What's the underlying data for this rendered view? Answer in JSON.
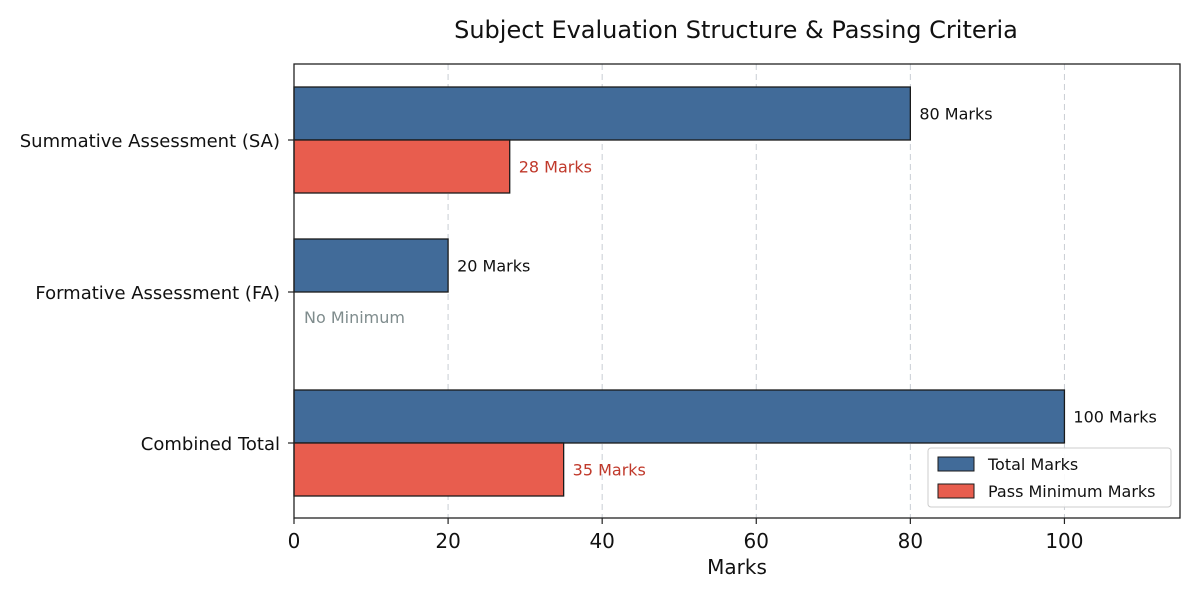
{
  "chart_data": {
    "type": "bar",
    "orientation": "horizontal",
    "title": "Subject Evaluation Structure & Passing Criteria",
    "xlabel": "Marks",
    "ylabel": "",
    "xlim": [
      0,
      115
    ],
    "xticks": [
      0,
      20,
      40,
      60,
      80,
      100
    ],
    "grid": "x-dashed",
    "categories": [
      "Summative Assessment (SA)",
      "Formative Assessment (FA)",
      "Combined Total"
    ],
    "series": [
      {
        "name": "Total Marks",
        "color": "#416b99",
        "label_color": "#111111",
        "values": [
          80,
          20,
          100
        ],
        "labels": [
          "80 Marks",
          "20 Marks",
          "100 Marks"
        ]
      },
      {
        "name": "Pass Minimum Marks",
        "color": "#e85d4e",
        "label_color": "#c0392b",
        "values": [
          28,
          null,
          35
        ],
        "labels": [
          "28 Marks",
          "",
          "35 Marks"
        ]
      }
    ],
    "annotations": [
      {
        "category": "Formative Assessment (FA)",
        "text": "No Minimum",
        "color": "#7f8c8d"
      }
    ],
    "legend_position": "bottom-right"
  }
}
